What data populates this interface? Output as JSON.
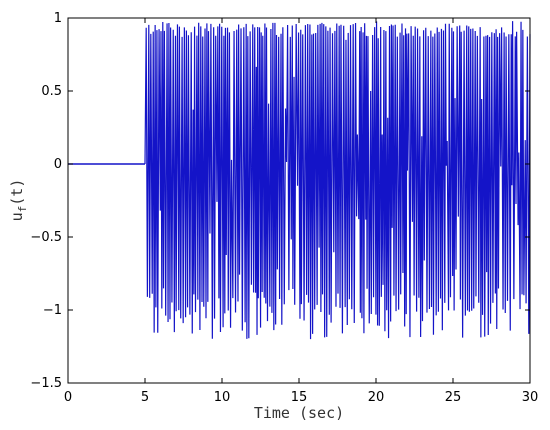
{
  "chart_data": {
    "type": "line",
    "title": "",
    "xlabel": "Time (sec)",
    "ylabel": {
      "base": "u",
      "subscript": "f",
      "suffix": "(t)"
    },
    "xlim": [
      0,
      30
    ],
    "ylim": [
      -1.5,
      1
    ],
    "xticks": [
      0,
      5,
      10,
      15,
      20,
      25,
      30
    ],
    "yticks": [
      -1.5,
      -1,
      -0.5,
      0,
      0.5,
      1
    ],
    "xtick_labels": [
      "0",
      "5",
      "10",
      "15",
      "20",
      "25",
      "30"
    ],
    "ytick_labels": [
      "−1.5",
      "−1",
      "−0.5",
      "0",
      "0.5",
      "1"
    ],
    "grid": false,
    "colors": {
      "series": "#1414c8",
      "axes": "#000000"
    },
    "series": [
      {
        "segments": [
          {
            "x": [
              0,
              5
            ],
            "y": [
              0,
              0
            ]
          },
          {
            "x_start": 5,
            "x_end": 30,
            "y_max": 0.98,
            "y_min": -1.2,
            "typical_upper": 0.92,
            "typical_lower": -0.85,
            "pattern": "rapid switching"
          }
        ]
      }
    ]
  }
}
